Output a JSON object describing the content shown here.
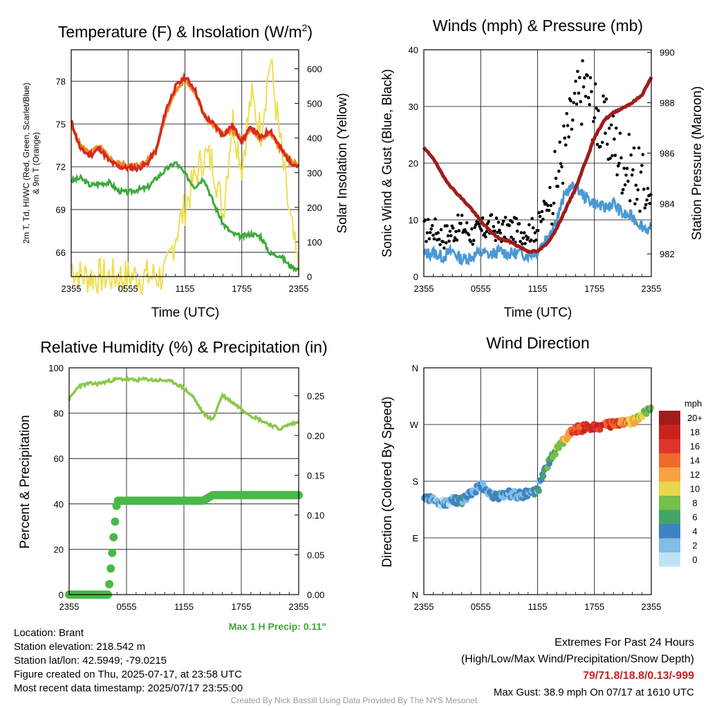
{
  "chart_data": [
    {
      "type": "line",
      "title": "Temperature (F) & Insolation (W/m²)",
      "title_main": "Temperature (F) & Insolation (W/m",
      "title_sup": "2",
      "title_end": ")",
      "xlabel": "Time (UTC)",
      "ylabel_line1": "2m T, Td, HI/WC (Red, Green, Scarlet/Blue)",
      "ylabel_line2": "& 9m T (Orange)",
      "y2label": "Solar Insolation (Yellow)",
      "x_ticks": [
        "2355",
        "0555",
        "1155",
        "1755",
        "2355"
      ],
      "y_ticks": [
        "66",
        "69",
        "72",
        "75",
        "78"
      ],
      "y2_ticks": [
        "0",
        "100",
        "200",
        "300",
        "400",
        "500",
        "600"
      ],
      "ylim": [
        64.3,
        80.2
      ],
      "y2lim": [
        0,
        655
      ],
      "x_hours": [
        0,
        1,
        2,
        3,
        4,
        5,
        6,
        7,
        8,
        9,
        10,
        11,
        12,
        13,
        14,
        15,
        16,
        17,
        18,
        19,
        20,
        21,
        22,
        23,
        24
      ],
      "series": [
        {
          "name": "2m T",
          "color": "#d62a20",
          "values": [
            75.2,
            73.2,
            72.8,
            73.3,
            72.4,
            72.0,
            71.9,
            71.9,
            72.2,
            73.2,
            76.0,
            77.6,
            78.3,
            77.5,
            75.6,
            75.0,
            74.2,
            74.9,
            73.8,
            74.8,
            74.0,
            74.6,
            73.4,
            72.4,
            72.0
          ]
        },
        {
          "name": "9m T",
          "color": "#f08a24",
          "values": [
            74.9,
            73.4,
            73.0,
            73.4,
            72.6,
            72.2,
            72.1,
            72.1,
            72.3,
            73.3,
            75.8,
            77.3,
            78.1,
            77.3,
            75.6,
            74.9,
            74.3,
            74.6,
            73.9,
            74.5,
            73.9,
            74.3,
            73.3,
            72.5,
            72.1
          ]
        },
        {
          "name": "T_d",
          "color": "#3caa3c",
          "values": [
            71.0,
            71.2,
            70.7,
            70.8,
            70.9,
            70.3,
            70.2,
            70.4,
            70.5,
            71.2,
            71.8,
            72.3,
            71.5,
            70.6,
            71.2,
            69.5,
            68.0,
            67.3,
            67.1,
            67.3,
            67.1,
            65.9,
            65.8,
            65.1,
            64.8
          ]
        },
        {
          "name": "Solar Insolation",
          "color": "#f0de50",
          "values": [
            30,
            2,
            0,
            0,
            0,
            0,
            0,
            0,
            0,
            0,
            5,
            120,
            200,
            280,
            350,
            330,
            180,
            460,
            320,
            520,
            420,
            630,
            400,
            180,
            10
          ]
        }
      ]
    },
    {
      "type": "line",
      "title": "Winds (mph) & Pressure (mb)",
      "xlabel": "Time (UTC)",
      "ylabel": "Sonic Wind & Gust (Blue, Black)",
      "y2label": "Station Pressure (Maroon)",
      "x_ticks": [
        "2355",
        "0555",
        "1155",
        "1755",
        "2355"
      ],
      "y_ticks": [
        "0",
        "10",
        "20",
        "30",
        "40"
      ],
      "y2_ticks": [
        "982",
        "984",
        "986",
        "988",
        "990"
      ],
      "ylim": [
        0,
        40
      ],
      "y2lim": [
        981.1,
        990.1
      ],
      "x_hours": [
        0,
        1,
        2,
        3,
        4,
        5,
        6,
        7,
        8,
        9,
        10,
        11,
        12,
        13,
        14,
        15,
        16,
        17,
        18,
        19,
        20,
        21,
        22,
        23,
        24
      ],
      "series": [
        {
          "name": "Sonic Wind",
          "color": "#4a98d4",
          "values": [
            4.0,
            4.2,
            3.5,
            4.5,
            3.0,
            3.5,
            4.2,
            3.8,
            4.5,
            4.0,
            4.2,
            3.8,
            4.5,
            7.0,
            10.0,
            15.0,
            16.0,
            14.0,
            13.0,
            12.0,
            13.0,
            11.0,
            10.5,
            9.0,
            8.0
          ]
        },
        {
          "name": "Gust",
          "color": "#000000",
          "values": [
            8,
            8.5,
            7,
            8,
            9,
            7.5,
            8,
            9,
            8,
            8.5,
            8,
            8,
            8.5,
            13,
            17,
            24,
            30,
            34,
            29,
            26,
            24,
            20,
            19,
            16,
            14
          ]
        },
        {
          "name": "Station Pressure",
          "color": "#a01c1c",
          "values": [
            986.2,
            985.8,
            985.1,
            984.6,
            984.2,
            983.8,
            983.3,
            982.9,
            982.6,
            982.5,
            982.3,
            982.1,
            982.1,
            982.4,
            983.0,
            983.8,
            984.6,
            985.6,
            986.6,
            987.3,
            987.6,
            987.8,
            988.0,
            988.3,
            989.0
          ]
        }
      ]
    },
    {
      "type": "line",
      "title": "Relative Humidity (%) & Precipitation (in)",
      "ylabel": "Percent & Precipitation",
      "x_ticks": [
        "2355",
        "0555",
        "1155",
        "1755",
        "2355"
      ],
      "y_ticks": [
        "0",
        "20",
        "40",
        "60",
        "80",
        "100"
      ],
      "y2_ticks": [
        "0.00",
        "0.05",
        "0.10",
        "0.15",
        "0.20",
        "0.25"
      ],
      "ylim": [
        0,
        100
      ],
      "y2lim": [
        0,
        0.285
      ],
      "x_hours": [
        0,
        1,
        2,
        3,
        4,
        5,
        6,
        7,
        8,
        9,
        10,
        11,
        12,
        13,
        14,
        15,
        16,
        17,
        18,
        19,
        20,
        21,
        22,
        23,
        24
      ],
      "series": [
        {
          "name": "Relative Humidity",
          "color": "#8cc84b",
          "values": [
            86,
            92,
            93,
            93,
            94,
            95,
            95,
            94.5,
            95,
            94.5,
            94.5,
            93.5,
            91,
            87,
            80,
            77,
            88,
            85,
            82,
            79,
            77,
            75,
            73,
            75,
            76
          ]
        },
        {
          "name": "Precipitation",
          "color": "#4ab848",
          "values": [
            0,
            0,
            0,
            0,
            0.005,
            0.118,
            0.118,
            0.118,
            0.118,
            0.118,
            0.118,
            0.118,
            0.118,
            0.118,
            0.118,
            0.125,
            0.125,
            0.125,
            0.125,
            0.125,
            0.125,
            0.125,
            0.125,
            0.125,
            0.125
          ]
        }
      ],
      "annotation": "Max 1 H Precip: 0.11\""
    },
    {
      "type": "scatter",
      "title": "Wind Direction",
      "ylabel": "Direction (Colored By Speed)",
      "x_ticks": [
        "2355",
        "0555",
        "1155",
        "1755",
        "2355"
      ],
      "y_ticks": [
        "N",
        "E",
        "S",
        "W",
        "N"
      ],
      "ylim": [
        0,
        360
      ],
      "x_hours": [
        0,
        1,
        2,
        3,
        4,
        5,
        6,
        7,
        8,
        9,
        10,
        11,
        12,
        13,
        14,
        15,
        16,
        17,
        18,
        19,
        20,
        21,
        22,
        23,
        24
      ],
      "directions": [
        155,
        150,
        145,
        150,
        148,
        160,
        175,
        160,
        155,
        160,
        158,
        160,
        165,
        205,
        230,
        250,
        262,
        265,
        267,
        268,
        270,
        272,
        275,
        285,
        298
      ],
      "speeds": [
        4,
        4,
        3,
        4,
        5,
        4,
        4,
        4,
        5,
        4,
        4,
        4,
        5,
        7,
        9,
        12,
        16,
        18,
        18,
        17,
        16,
        14,
        12,
        10,
        8
      ],
      "colorbar": {
        "title": "mph",
        "labels": [
          "20+",
          "18",
          "16",
          "14",
          "12",
          "10",
          "8",
          "6",
          "4",
          "2",
          "0"
        ],
        "colors": [
          "#a01c1c",
          "#c8231e",
          "#e0332a",
          "#ee6a2c",
          "#f6a243",
          "#e6d84c",
          "#78be4a",
          "#44a46a",
          "#3f82c2",
          "#82bde6",
          "#bfe3f6"
        ]
      }
    }
  ],
  "footer": {
    "location": "Location: Brant",
    "elevation": "Station elevation: 218.542 m",
    "latlon": "Station lat/lon: 42.5949; -79.0215",
    "created": "Figure created on Thu, 2025-07-17, at 23:58 UTC",
    "recent": "Most recent data timestamp: 2025/07/17 23:55:00",
    "extremes_title": "Extremes For Past 24 Hours",
    "extremes_sub": "(High/Low/Max Wind/Precipitation/Snow Depth)",
    "extremes_values": "79/71.8/18.8/0.13/-999",
    "max_gust": "Max Gust: 38.9 mph On 07/17 at 1610 UTC",
    "credit": "Created By Nick Bassill Using Data Provided By The NYS Mesonet"
  },
  "colors": {
    "accent_red": "#c8231e",
    "precip_green": "#3fa535"
  }
}
